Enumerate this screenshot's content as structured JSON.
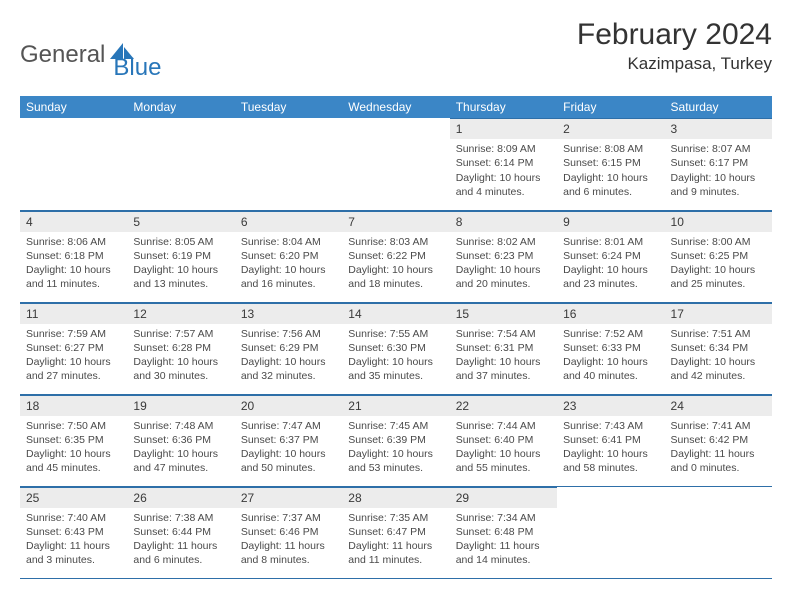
{
  "brand": {
    "word1": "General",
    "word2": "Blue"
  },
  "title": "February 2024",
  "location": "Kazimpasa, Turkey",
  "colors": {
    "header_bg": "#3b86c6",
    "header_text": "#ffffff",
    "rule": "#2e6fa8",
    "daynum_bg": "#ececec",
    "body_text": "#4a4a4a",
    "brand_blue": "#2876b9",
    "brand_gray": "#555555"
  },
  "weekdays": [
    "Sunday",
    "Monday",
    "Tuesday",
    "Wednesday",
    "Thursday",
    "Friday",
    "Saturday"
  ],
  "weeks": [
    [
      null,
      null,
      null,
      null,
      {
        "n": "1",
        "sr": "8:09 AM",
        "ss": "6:14 PM",
        "dl": "10 hours and 4 minutes."
      },
      {
        "n": "2",
        "sr": "8:08 AM",
        "ss": "6:15 PM",
        "dl": "10 hours and 6 minutes."
      },
      {
        "n": "3",
        "sr": "8:07 AM",
        "ss": "6:17 PM",
        "dl": "10 hours and 9 minutes."
      }
    ],
    [
      {
        "n": "4",
        "sr": "8:06 AM",
        "ss": "6:18 PM",
        "dl": "10 hours and 11 minutes."
      },
      {
        "n": "5",
        "sr": "8:05 AM",
        "ss": "6:19 PM",
        "dl": "10 hours and 13 minutes."
      },
      {
        "n": "6",
        "sr": "8:04 AM",
        "ss": "6:20 PM",
        "dl": "10 hours and 16 minutes."
      },
      {
        "n": "7",
        "sr": "8:03 AM",
        "ss": "6:22 PM",
        "dl": "10 hours and 18 minutes."
      },
      {
        "n": "8",
        "sr": "8:02 AM",
        "ss": "6:23 PM",
        "dl": "10 hours and 20 minutes."
      },
      {
        "n": "9",
        "sr": "8:01 AM",
        "ss": "6:24 PM",
        "dl": "10 hours and 23 minutes."
      },
      {
        "n": "10",
        "sr": "8:00 AM",
        "ss": "6:25 PM",
        "dl": "10 hours and 25 minutes."
      }
    ],
    [
      {
        "n": "11",
        "sr": "7:59 AM",
        "ss": "6:27 PM",
        "dl": "10 hours and 27 minutes."
      },
      {
        "n": "12",
        "sr": "7:57 AM",
        "ss": "6:28 PM",
        "dl": "10 hours and 30 minutes."
      },
      {
        "n": "13",
        "sr": "7:56 AM",
        "ss": "6:29 PM",
        "dl": "10 hours and 32 minutes."
      },
      {
        "n": "14",
        "sr": "7:55 AM",
        "ss": "6:30 PM",
        "dl": "10 hours and 35 minutes."
      },
      {
        "n": "15",
        "sr": "7:54 AM",
        "ss": "6:31 PM",
        "dl": "10 hours and 37 minutes."
      },
      {
        "n": "16",
        "sr": "7:52 AM",
        "ss": "6:33 PM",
        "dl": "10 hours and 40 minutes."
      },
      {
        "n": "17",
        "sr": "7:51 AM",
        "ss": "6:34 PM",
        "dl": "10 hours and 42 minutes."
      }
    ],
    [
      {
        "n": "18",
        "sr": "7:50 AM",
        "ss": "6:35 PM",
        "dl": "10 hours and 45 minutes."
      },
      {
        "n": "19",
        "sr": "7:48 AM",
        "ss": "6:36 PM",
        "dl": "10 hours and 47 minutes."
      },
      {
        "n": "20",
        "sr": "7:47 AM",
        "ss": "6:37 PM",
        "dl": "10 hours and 50 minutes."
      },
      {
        "n": "21",
        "sr": "7:45 AM",
        "ss": "6:39 PM",
        "dl": "10 hours and 53 minutes."
      },
      {
        "n": "22",
        "sr": "7:44 AM",
        "ss": "6:40 PM",
        "dl": "10 hours and 55 minutes."
      },
      {
        "n": "23",
        "sr": "7:43 AM",
        "ss": "6:41 PM",
        "dl": "10 hours and 58 minutes."
      },
      {
        "n": "24",
        "sr": "7:41 AM",
        "ss": "6:42 PM",
        "dl": "11 hours and 0 minutes."
      }
    ],
    [
      {
        "n": "25",
        "sr": "7:40 AM",
        "ss": "6:43 PM",
        "dl": "11 hours and 3 minutes."
      },
      {
        "n": "26",
        "sr": "7:38 AM",
        "ss": "6:44 PM",
        "dl": "11 hours and 6 minutes."
      },
      {
        "n": "27",
        "sr": "7:37 AM",
        "ss": "6:46 PM",
        "dl": "11 hours and 8 minutes."
      },
      {
        "n": "28",
        "sr": "7:35 AM",
        "ss": "6:47 PM",
        "dl": "11 hours and 11 minutes."
      },
      {
        "n": "29",
        "sr": "7:34 AM",
        "ss": "6:48 PM",
        "dl": "11 hours and 14 minutes."
      },
      null,
      null
    ]
  ],
  "labels": {
    "sunrise": "Sunrise:",
    "sunset": "Sunset:",
    "daylight": "Daylight:"
  }
}
